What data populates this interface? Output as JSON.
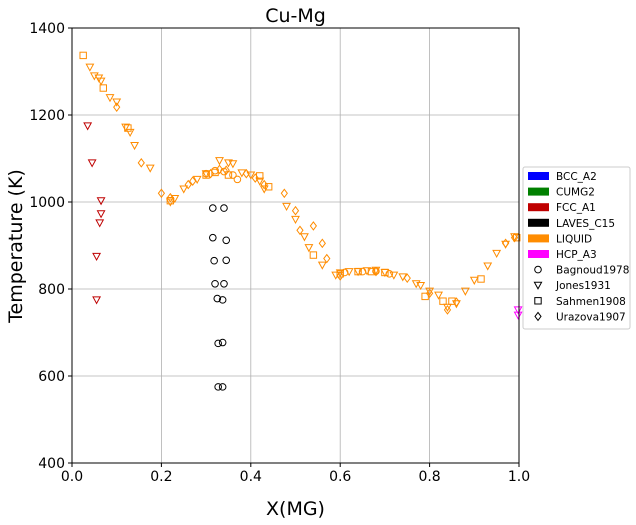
{
  "chart_data": {
    "type": "scatter",
    "title": "Cu-Mg",
    "xlabel": "X(MG)",
    "ylabel": "Temperature (K)",
    "xlim": [
      0,
      1
    ],
    "ylim": [
      400,
      1400
    ],
    "xticks": [
      "0.0",
      "0.2",
      "0.4",
      "0.6",
      "0.8",
      "1.0"
    ],
    "yticks": [
      "400",
      "600",
      "800",
      "1000",
      "1200",
      "1400"
    ],
    "grid": true,
    "legend": {
      "placement": "right",
      "entries": [
        {
          "label": "BCC_A2",
          "kind": "patch",
          "color": "#0000ff"
        },
        {
          "label": "CUMG2",
          "kind": "patch",
          "color": "#008000"
        },
        {
          "label": "FCC_A1",
          "kind": "patch",
          "color": "#bf0000"
        },
        {
          "label": "LAVES_C15",
          "kind": "patch",
          "color": "#000000"
        },
        {
          "label": "LIQUID",
          "kind": "patch",
          "color": "#ff8c00"
        },
        {
          "label": "HCP_A3",
          "kind": "patch",
          "color": "#ff00ff"
        },
        {
          "label": "Bagnoud1978",
          "kind": "marker",
          "marker": "circle"
        },
        {
          "label": "Jones1931",
          "kind": "marker",
          "marker": "triangle-down"
        },
        {
          "label": "Sahmen1908",
          "kind": "marker",
          "marker": "square"
        },
        {
          "label": "Urazova1907",
          "kind": "marker",
          "marker": "diamond"
        }
      ]
    },
    "series": [
      {
        "name": "Bagnoud1978",
        "phase": "LAVES_C15",
        "marker": "circle",
        "color": "#000000",
        "points": [
          [
            0.315,
            986
          ],
          [
            0.34,
            986
          ],
          [
            0.315,
            918
          ],
          [
            0.345,
            912
          ],
          [
            0.318,
            865
          ],
          [
            0.345,
            866
          ],
          [
            0.32,
            812
          ],
          [
            0.34,
            812
          ],
          [
            0.325,
            778
          ],
          [
            0.337,
            775
          ],
          [
            0.327,
            675
          ],
          [
            0.337,
            677
          ],
          [
            0.327,
            575
          ],
          [
            0.337,
            575
          ]
        ]
      },
      {
        "name": "Bagnoud1978",
        "phase": "LIQUID",
        "marker": "circle",
        "color": "#ff8c00",
        "points": [
          [
            0.3,
            1065
          ],
          [
            0.32,
            1072
          ],
          [
            0.34,
            1070
          ],
          [
            0.36,
            1062
          ],
          [
            0.37,
            1052
          ],
          [
            0.61,
            838
          ],
          [
            0.65,
            840
          ],
          [
            0.68,
            841
          ],
          [
            0.71,
            835
          ]
        ]
      },
      {
        "name": "Jones1931",
        "phase": "FCC_A1",
        "marker": "triangle-down",
        "color": "#bf0000",
        "points": [
          [
            0.035,
            1175
          ],
          [
            0.045,
            1090
          ],
          [
            0.065,
            1003
          ],
          [
            0.065,
            973
          ],
          [
            0.062,
            952
          ],
          [
            0.055,
            875
          ],
          [
            0.055,
            775
          ]
        ]
      },
      {
        "name": "Jones1931",
        "phase": "LIQUID",
        "marker": "triangle-down",
        "color": "#ff8c00",
        "points": [
          [
            0.04,
            1310
          ],
          [
            0.05,
            1290
          ],
          [
            0.06,
            1285
          ],
          [
            0.065,
            1278
          ],
          [
            0.085,
            1240
          ],
          [
            0.1,
            1230
          ],
          [
            0.12,
            1172
          ],
          [
            0.13,
            1160
          ],
          [
            0.14,
            1130
          ],
          [
            0.175,
            1078
          ],
          [
            0.22,
            1000
          ],
          [
            0.23,
            1008
          ],
          [
            0.25,
            1030
          ],
          [
            0.28,
            1052
          ],
          [
            0.3,
            1065
          ],
          [
            0.33,
            1095
          ],
          [
            0.35,
            1090
          ],
          [
            0.36,
            1088
          ],
          [
            0.38,
            1067
          ],
          [
            0.4,
            1062
          ],
          [
            0.42,
            1048
          ],
          [
            0.43,
            1030
          ],
          [
            0.48,
            990
          ],
          [
            0.5,
            960
          ],
          [
            0.52,
            920
          ],
          [
            0.53,
            895
          ],
          [
            0.56,
            855
          ],
          [
            0.59,
            832
          ],
          [
            0.6,
            837
          ],
          [
            0.62,
            840
          ],
          [
            0.64,
            840
          ],
          [
            0.66,
            842
          ],
          [
            0.68,
            843
          ],
          [
            0.7,
            838
          ],
          [
            0.72,
            832
          ],
          [
            0.74,
            828
          ],
          [
            0.77,
            812
          ],
          [
            0.78,
            808
          ],
          [
            0.8,
            795
          ],
          [
            0.82,
            786
          ],
          [
            0.84,
            758
          ],
          [
            0.86,
            766
          ],
          [
            0.88,
            795
          ],
          [
            0.9,
            820
          ],
          [
            0.93,
            853
          ],
          [
            0.95,
            882
          ],
          [
            0.97,
            903
          ],
          [
            0.99,
            920
          ]
        ]
      },
      {
        "name": "Jones1931",
        "phase": "HCP_A3",
        "marker": "triangle-down",
        "color": "#ff00ff",
        "points": [
          [
            0.998,
            752
          ],
          [
            0.998,
            740
          ]
        ]
      },
      {
        "name": "Sahmen1908",
        "phase": "LIQUID",
        "marker": "square",
        "color": "#ff8c00",
        "points": [
          [
            0.025,
            1337
          ],
          [
            0.07,
            1262
          ],
          [
            0.125,
            1170
          ],
          [
            0.22,
            1003
          ],
          [
            0.3,
            1062
          ],
          [
            0.32,
            1068
          ],
          [
            0.35,
            1062
          ],
          [
            0.42,
            1060
          ],
          [
            0.44,
            1035
          ],
          [
            0.54,
            878
          ],
          [
            0.6,
            835
          ],
          [
            0.64,
            840
          ],
          [
            0.67,
            840
          ],
          [
            0.7,
            838
          ],
          [
            0.79,
            783
          ],
          [
            0.83,
            772
          ],
          [
            0.85,
            772
          ],
          [
            0.915,
            823
          ],
          [
            0.995,
            918
          ]
        ]
      },
      {
        "name": "Urazova1907",
        "phase": "LIQUID",
        "marker": "diamond",
        "color": "#ff8c00",
        "points": [
          [
            0.1,
            1218
          ],
          [
            0.155,
            1090
          ],
          [
            0.2,
            1020
          ],
          [
            0.22,
            1010
          ],
          [
            0.26,
            1040
          ],
          [
            0.27,
            1048
          ],
          [
            0.31,
            1065
          ],
          [
            0.33,
            1075
          ],
          [
            0.345,
            1073
          ],
          [
            0.39,
            1065
          ],
          [
            0.41,
            1055
          ],
          [
            0.43,
            1040
          ],
          [
            0.475,
            1020
          ],
          [
            0.5,
            980
          ],
          [
            0.51,
            935
          ],
          [
            0.54,
            945
          ],
          [
            0.56,
            905
          ],
          [
            0.57,
            870
          ],
          [
            0.6,
            830
          ],
          [
            0.68,
            840
          ],
          [
            0.75,
            825
          ],
          [
            0.8,
            790
          ],
          [
            0.84,
            752
          ],
          [
            0.86,
            770
          ],
          [
            0.97,
            905
          ],
          [
            0.99,
            918
          ]
        ]
      }
    ]
  }
}
